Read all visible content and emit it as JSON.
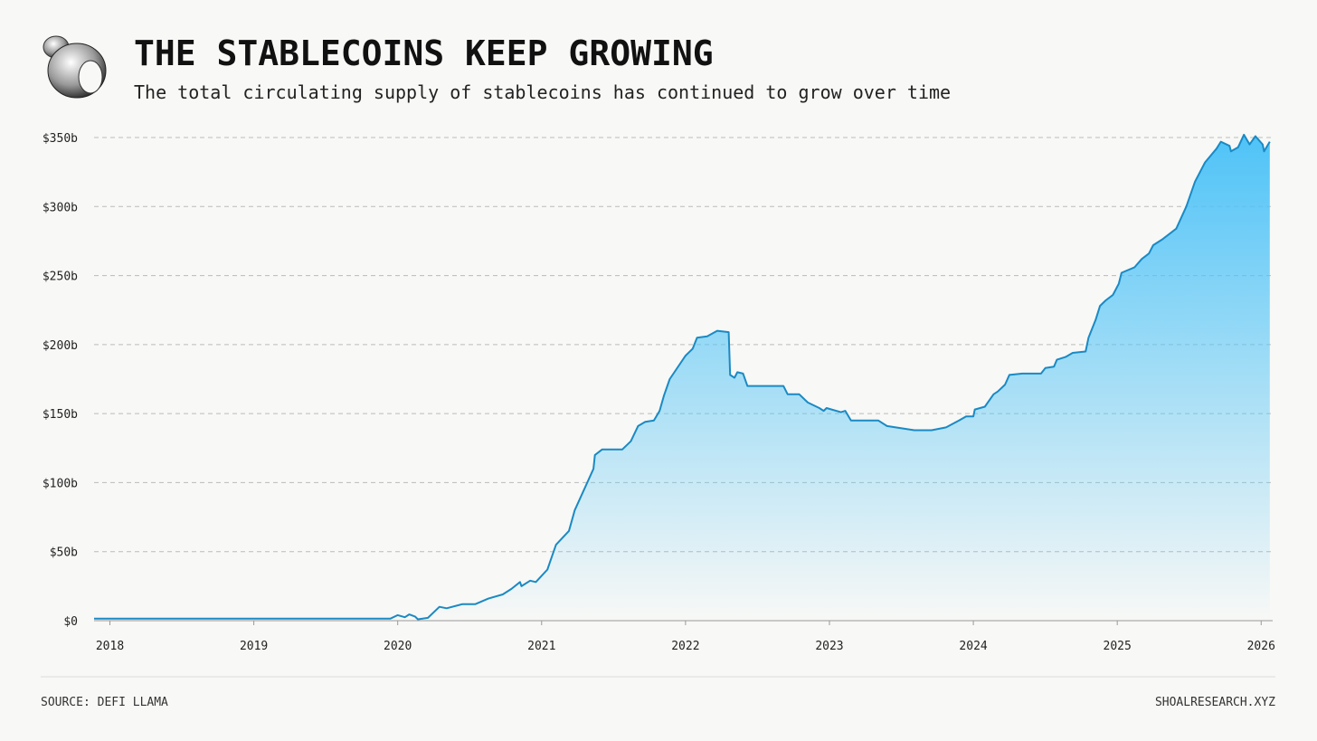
{
  "chart_data": {
    "type": "area",
    "title": "THE STABLECOINS KEEP GROWING",
    "subtitle": "The total circulating supply of stablecoins has continued to grow over time",
    "source": "SOURCE: DEFI LLAMA",
    "credit": "SHOALRESEARCH.XYZ",
    "color": "#1a8ac4",
    "fill_color": "#4fc3f7",
    "grid": true,
    "xlim": [
      2017.89,
      2026.08
    ],
    "xticks": [
      2018,
      2019,
      2020,
      2021,
      2022,
      2023,
      2024,
      2025,
      2026
    ],
    "ylim": [
      0,
      350
    ],
    "yticks": [
      {
        "value": 0,
        "label": "$0"
      },
      {
        "value": 50,
        "label": "$50b"
      },
      {
        "value": 100,
        "label": "$100b"
      },
      {
        "value": 150,
        "label": "$150b"
      },
      {
        "value": 200,
        "label": "$200b"
      },
      {
        "value": 250,
        "label": "$250b"
      },
      {
        "value": 300,
        "label": "$300b"
      },
      {
        "value": 350,
        "label": "$350b"
      }
    ],
    "x": [
      2017.89,
      2019.95,
      2020.0,
      2020.05,
      2020.08,
      2020.12,
      2020.14,
      2020.21,
      2020.29,
      2020.34,
      2020.45,
      2020.54,
      2020.63,
      2020.73,
      2020.79,
      2020.85,
      2020.86,
      2020.92,
      2020.96,
      2021.04,
      2021.06,
      2021.1,
      2021.19,
      2021.23,
      2021.36,
      2021.37,
      2021.42,
      2021.56,
      2021.62,
      2021.67,
      2021.72,
      2021.78,
      2021.82,
      2021.85,
      2021.89,
      2022.0,
      2022.05,
      2022.08,
      2022.15,
      2022.22,
      2022.3,
      2022.31,
      2022.34,
      2022.36,
      2022.4,
      2022.43,
      2022.68,
      2022.71,
      2022.79,
      2022.85,
      2022.93,
      2022.96,
      2022.98,
      2023.08,
      2023.11,
      2023.15,
      2023.34,
      2023.4,
      2023.59,
      2023.71,
      2023.81,
      2023.9,
      2023.95,
      2024.0,
      2024.01,
      2024.08,
      2024.14,
      2024.17,
      2024.22,
      2024.25,
      2024.34,
      2024.47,
      2024.5,
      2024.56,
      2024.58,
      2024.64,
      2024.69,
      2024.78,
      2024.8,
      2024.85,
      2024.88,
      2024.92,
      2024.97,
      2025.01,
      2025.03,
      2025.12,
      2025.17,
      2025.22,
      2025.25,
      2025.31,
      2025.41,
      2025.48,
      2025.54,
      2025.61,
      2025.69,
      2025.72,
      2025.78,
      2025.79,
      2025.84,
      2025.88,
      2025.92,
      2025.96,
      2026.01,
      2026.02,
      2026.06
    ],
    "values": [
      1.5,
      1.5,
      4,
      2.5,
      4.5,
      3,
      1,
      2,
      10,
      9,
      12,
      12,
      16,
      19,
      23,
      28,
      25,
      29,
      28,
      37,
      43,
      55,
      65,
      80,
      110,
      120,
      124,
      124,
      130,
      141,
      144,
      145,
      152,
      163,
      175,
      192,
      197,
      205,
      206,
      210,
      209,
      178,
      176,
      180,
      179,
      170,
      170,
      164,
      164,
      158,
      154,
      152,
      154,
      151,
      152,
      145,
      145,
      141,
      138,
      138,
      140,
      145,
      148,
      148,
      153,
      155,
      164,
      166,
      171,
      178,
      179,
      179,
      183,
      184,
      189,
      191,
      194,
      195,
      205,
      218,
      228,
      232,
      236,
      244,
      252,
      256,
      262,
      266,
      272,
      276,
      284,
      300,
      318,
      332,
      342,
      347,
      344,
      340,
      343,
      352,
      345,
      351,
      345,
      340,
      347
    ]
  }
}
